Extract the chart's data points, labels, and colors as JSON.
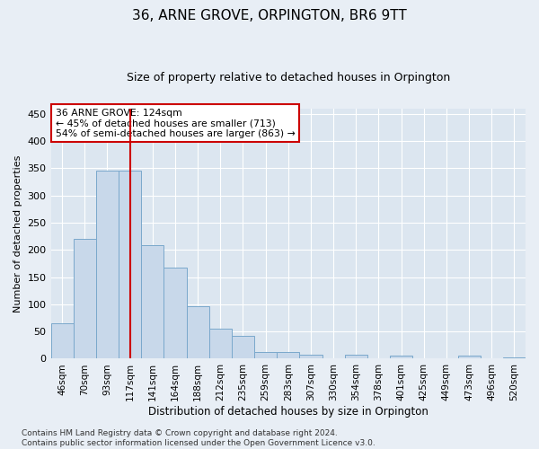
{
  "title": "36, ARNE GROVE, ORPINGTON, BR6 9TT",
  "subtitle": "Size of property relative to detached houses in Orpington",
  "xlabel": "Distribution of detached houses by size in Orpington",
  "ylabel": "Number of detached properties",
  "bar_labels": [
    "46sqm",
    "70sqm",
    "93sqm",
    "117sqm",
    "141sqm",
    "164sqm",
    "188sqm",
    "212sqm",
    "235sqm",
    "259sqm",
    "283sqm",
    "307sqm",
    "330sqm",
    "354sqm",
    "378sqm",
    "401sqm",
    "425sqm",
    "449sqm",
    "473sqm",
    "496sqm",
    "520sqm"
  ],
  "bar_values": [
    65,
    220,
    345,
    345,
    208,
    168,
    97,
    56,
    42,
    13,
    13,
    7,
    0,
    7,
    0,
    5,
    0,
    0,
    5,
    0,
    3
  ],
  "bar_color": "#c8d8ea",
  "bar_edge_color": "#7aa8cc",
  "vline_x": 3.0,
  "vline_color": "#cc0000",
  "annotation_text": "36 ARNE GROVE: 124sqm\n← 45% of detached houses are smaller (713)\n54% of semi-detached houses are larger (863) →",
  "annotation_box_color": "#ffffff",
  "annotation_box_edge": "#cc0000",
  "ylim": [
    0,
    460
  ],
  "yticks": [
    0,
    50,
    100,
    150,
    200,
    250,
    300,
    350,
    400,
    450
  ],
  "footer": "Contains HM Land Registry data © Crown copyright and database right 2024.\nContains public sector information licensed under the Open Government Licence v3.0.",
  "bg_color": "#e8eef5",
  "plot_bg_color": "#dce6f0",
  "title_fontsize": 11,
  "subtitle_fontsize": 9
}
